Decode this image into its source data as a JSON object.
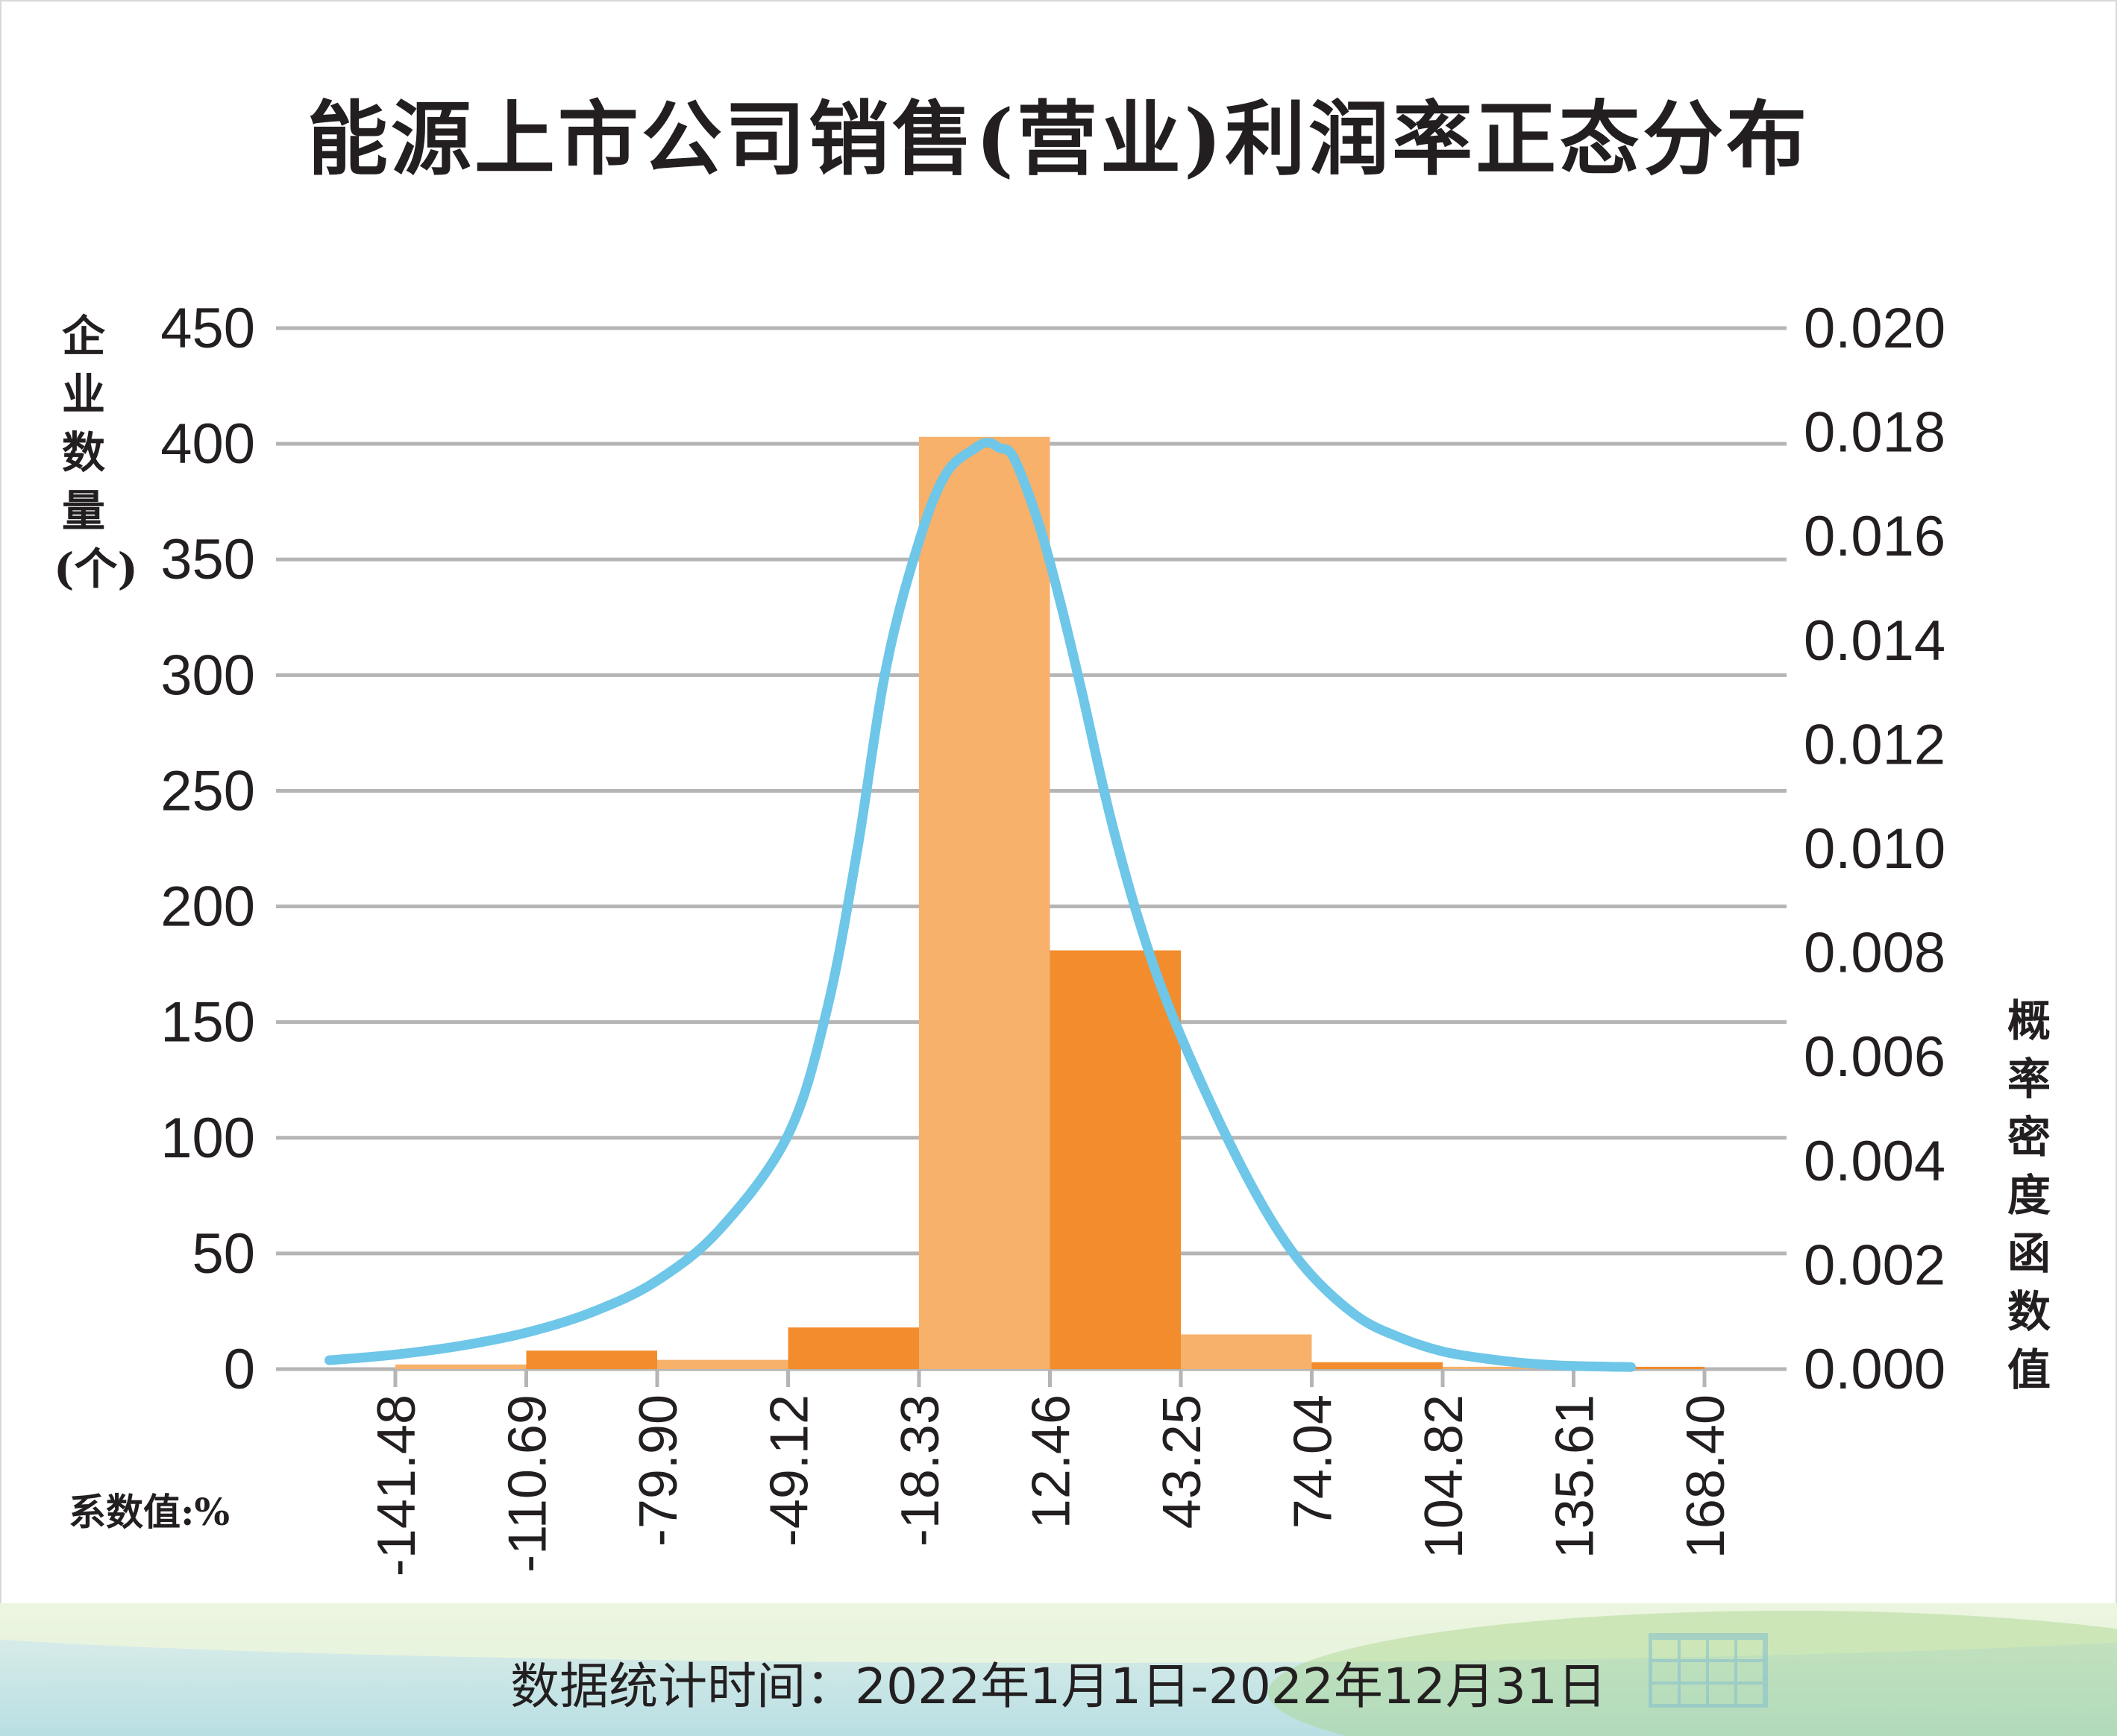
{
  "title": "能源上市公司销售(营业)利润率正态分布",
  "y_left_label": "企业数量(个)",
  "y_right_label": "概率密度函数值",
  "x_label": "系数值:%",
  "footer": "数据统计时间：2022年1月1日-2022年12月31日",
  "colors": {
    "bar_light": "#f7b16a",
    "bar_dark": "#f28c2c",
    "curve": "#6ec6e8",
    "grid": "#b5b5b5",
    "text": "#231f20"
  },
  "chart_data": {
    "type": "bar",
    "y_left": {
      "ylim": [
        0,
        450
      ],
      "ticks": [
        "450",
        "400",
        "350",
        "300",
        "250",
        "200",
        "150",
        "100",
        "50",
        "0"
      ]
    },
    "y_right": {
      "ylim": [
        0,
        0.02
      ],
      "ticks": [
        "0.020",
        "0.018",
        "0.016",
        "0.014",
        "0.012",
        "0.010",
        "0.008",
        "0.006",
        "0.004",
        "0.002",
        "0.000"
      ]
    },
    "x_ticks": [
      "-141.48",
      "-110.69",
      "-79.90",
      "-49.12",
      "-18.33",
      "12.46",
      "43.25",
      "74.04",
      "104.82",
      "135.61",
      "168.40"
    ],
    "bins": [
      {
        "from": -141.48,
        "to": -110.69,
        "value": 2
      },
      {
        "from": -110.69,
        "to": -79.9,
        "value": 8
      },
      {
        "from": -79.9,
        "to": -49.12,
        "value": 4
      },
      {
        "from": -49.12,
        "to": -18.33,
        "value": 18
      },
      {
        "from": -18.33,
        "to": 12.46,
        "value": 403
      },
      {
        "from": 12.46,
        "to": 43.25,
        "value": 181
      },
      {
        "from": 43.25,
        "to": 74.04,
        "value": 15
      },
      {
        "from": 74.04,
        "to": 104.82,
        "value": 3
      },
      {
        "from": 104.82,
        "to": 135.61,
        "value": 1
      },
      {
        "from": 135.61,
        "to": 168.4,
        "value": 1
      }
    ],
    "curve": {
      "type": "line",
      "axis": "right",
      "x": [
        -157,
        -141.48,
        -126,
        -110.69,
        -95,
        -79.9,
        -65,
        -49.12,
        -40,
        -33,
        -26,
        -18.33,
        -12,
        -5,
        -2,
        0.5,
        4,
        10,
        15,
        20,
        27,
        35,
        43.25,
        55,
        65,
        74.04,
        85,
        95,
        104.82,
        115,
        125,
        135.61,
        150
      ],
      "y": [
        0.00017,
        0.00028,
        0.00045,
        0.0007,
        0.0011,
        0.0017,
        0.0027,
        0.0045,
        0.0069,
        0.0099,
        0.0135,
        0.0159,
        0.0172,
        0.0177,
        0.0178,
        0.0177,
        0.0175,
        0.0162,
        0.0147,
        0.013,
        0.0105,
        0.0082,
        0.0064,
        0.0043,
        0.0028,
        0.0018,
        0.001,
        0.0006,
        0.00034,
        0.0002,
        0.00011,
        6e-05,
        4e-05
      ]
    }
  }
}
